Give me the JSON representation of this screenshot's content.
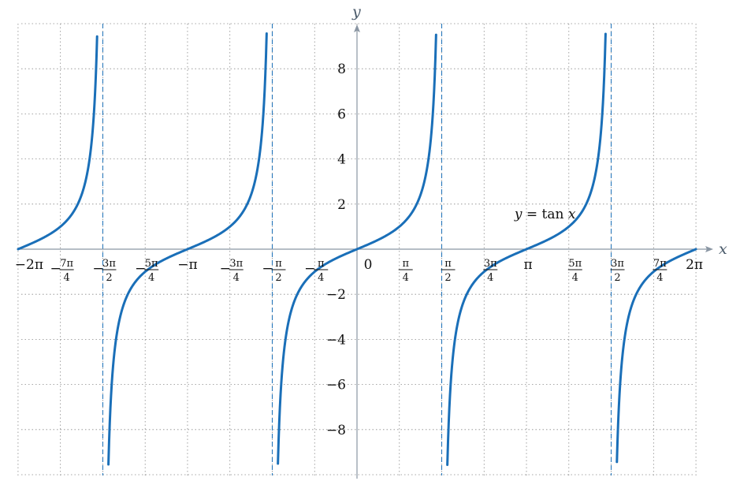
{
  "chart_data": {
    "type": "line",
    "title": "",
    "xlabel": "x",
    "ylabel": "y",
    "function": "tan x",
    "xlim": [
      -6.283,
      6.283
    ],
    "ylim": [
      -10,
      10
    ],
    "grid": true,
    "asymptotes": [
      -4.712,
      -1.571,
      1.571,
      4.712
    ],
    "x_ticks": [
      {
        "value": -6.283,
        "text": "−2π"
      },
      {
        "value": -5.498,
        "sign": "−",
        "num": "7π",
        "den": "4"
      },
      {
        "value": -4.712,
        "sign": "−",
        "num": "3π",
        "den": "2"
      },
      {
        "value": -3.927,
        "sign": "−",
        "num": "5π",
        "den": "4"
      },
      {
        "value": -3.142,
        "text": "−π"
      },
      {
        "value": -2.356,
        "sign": "−",
        "num": "3π",
        "den": "4"
      },
      {
        "value": -1.571,
        "sign": "−",
        "num": "π",
        "den": "2"
      },
      {
        "value": -0.785,
        "sign": "−",
        "num": "π",
        "den": "4"
      },
      {
        "value": 0,
        "text": "0"
      },
      {
        "value": 0.785,
        "num": "π",
        "den": "4"
      },
      {
        "value": 1.571,
        "num": "π",
        "den": "2"
      },
      {
        "value": 2.356,
        "num": "3π",
        "den": "4"
      },
      {
        "value": 3.142,
        "text": "π"
      },
      {
        "value": 3.927,
        "num": "5π",
        "den": "4"
      },
      {
        "value": 4.712,
        "num": "3π",
        "den": "2"
      },
      {
        "value": 5.498,
        "num": "7π",
        "den": "4"
      },
      {
        "value": 6.283,
        "text": "2π"
      }
    ],
    "y_ticks": [
      {
        "value": 8,
        "text": "8"
      },
      {
        "value": 6,
        "text": "6"
      },
      {
        "value": 4,
        "text": "4"
      },
      {
        "value": 2,
        "text": "2"
      },
      {
        "value": -2,
        "text": "−2"
      },
      {
        "value": -4,
        "text": "−4"
      },
      {
        "value": -6,
        "text": "−6"
      },
      {
        "value": -8,
        "text": "−8"
      }
    ],
    "series": [
      {
        "name": "y = tan x",
        "branches": [
          [
            -6.283,
            -4.818
          ],
          [
            -4.608,
            -1.675
          ],
          [
            -1.466,
            1.466
          ],
          [
            1.675,
            4.608
          ],
          [
            4.818,
            6.283
          ]
        ]
      }
    ],
    "annotation": {
      "y_var": "y",
      "eq": " = tan ",
      "x_var": "x",
      "at_x": 3.65,
      "at_y": 1.6
    },
    "colors": {
      "curve": "#1a6fb8",
      "asymptote": "#1a6fb8",
      "grid": "#8a8a8a",
      "axis": "#8a96a3"
    }
  }
}
